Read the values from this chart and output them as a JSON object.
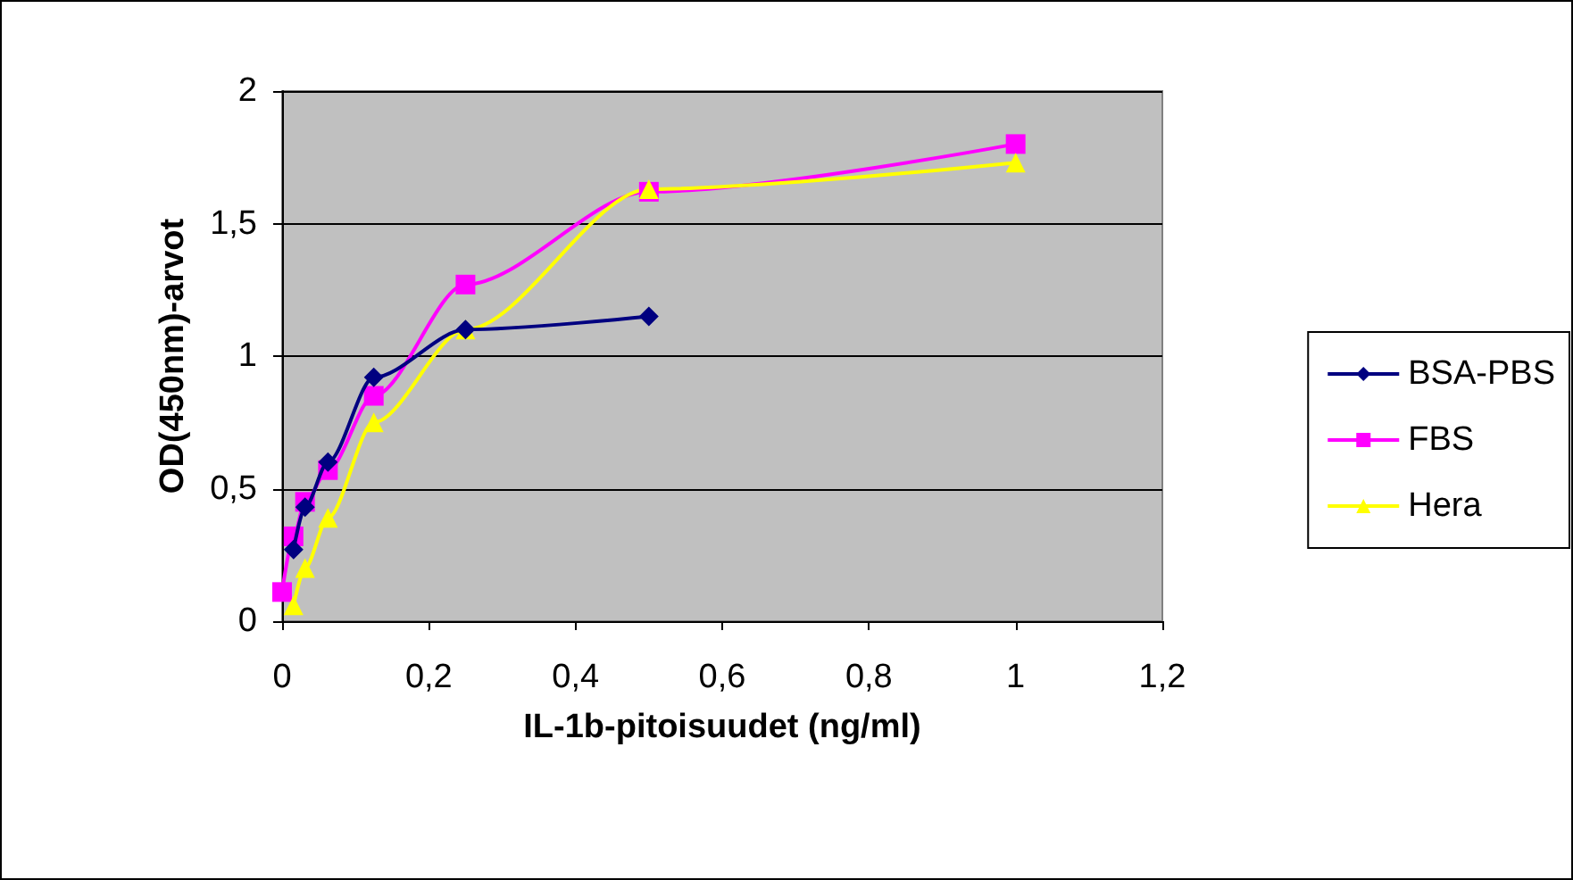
{
  "chart_data": {
    "type": "line",
    "xlabel": "IL-1b-pitoisuudet (ng/ml)",
    "ylabel": "OD(450nm)-arvot",
    "series": [
      {
        "name": "BSA-PBS",
        "color": "#000080",
        "marker": "diamond",
        "x": [
          0.0156,
          0.03125,
          0.0625,
          0.125,
          0.25,
          0.5
        ],
        "values": [
          0.27,
          0.43,
          0.6,
          0.92,
          1.1,
          1.15
        ]
      },
      {
        "name": "FBS",
        "color": "#ff00ff",
        "marker": "square",
        "x": [
          0,
          0.0156,
          0.03125,
          0.0625,
          0.125,
          0.25,
          0.5,
          1
        ],
        "values": [
          0.11,
          0.32,
          0.45,
          0.57,
          0.85,
          1.27,
          1.62,
          1.8
        ]
      },
      {
        "name": "Hera",
        "color": "#ffff00",
        "marker": "triangle",
        "x": [
          0.0156,
          0.03125,
          0.0625,
          0.125,
          0.25,
          0.5,
          1
        ],
        "values": [
          0.06,
          0.2,
          0.39,
          0.75,
          1.1,
          1.63,
          1.73
        ]
      }
    ],
    "xlim": [
      0,
      1.2
    ],
    "xticks": [
      0,
      {
        "value": 0.2,
        "label": "0,2"
      },
      {
        "value": 0.4,
        "label": "0,4"
      },
      {
        "value": 0.6,
        "label": "0,6"
      },
      {
        "value": 0.8,
        "label": "0,8"
      },
      {
        "value": 1,
        "label": "1"
      },
      {
        "value": 1.2,
        "label": "1,2"
      }
    ],
    "ylim": [
      0,
      2
    ],
    "yticks": [
      0,
      {
        "value": 0.5,
        "label": "0,5"
      },
      1,
      {
        "value": 1.5,
        "label": "1,5"
      },
      2
    ],
    "grid": "y",
    "legend": "right"
  }
}
